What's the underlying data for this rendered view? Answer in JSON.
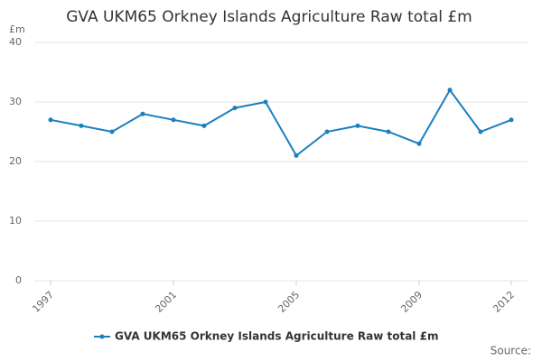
{
  "chart_data": {
    "type": "line",
    "title": "GVA UKM65 Orkney Islands Agriculture Raw total £m",
    "y_label": "£m",
    "source": "Source:",
    "x": [
      1997,
      1998,
      1999,
      2000,
      2001,
      2002,
      2003,
      2004,
      2005,
      2006,
      2007,
      2008,
      2009,
      2010,
      2011,
      2012
    ],
    "series": [
      {
        "name": "GVA UKM65 Orkney Islands Agriculture Raw total £m",
        "color": "#1b7fc0",
        "values": [
          27,
          26,
          25,
          28,
          27,
          26,
          29,
          30,
          21,
          25,
          26,
          25,
          23,
          32,
          25,
          27
        ]
      }
    ],
    "xlim": [
      1997,
      2012
    ],
    "xticks": [
      1997,
      2001,
      2005,
      2009,
      2012
    ],
    "ylim": [
      0,
      40
    ],
    "yticks": [
      0,
      10,
      20,
      30,
      40
    ],
    "grid": true,
    "legend": "bottom"
  }
}
